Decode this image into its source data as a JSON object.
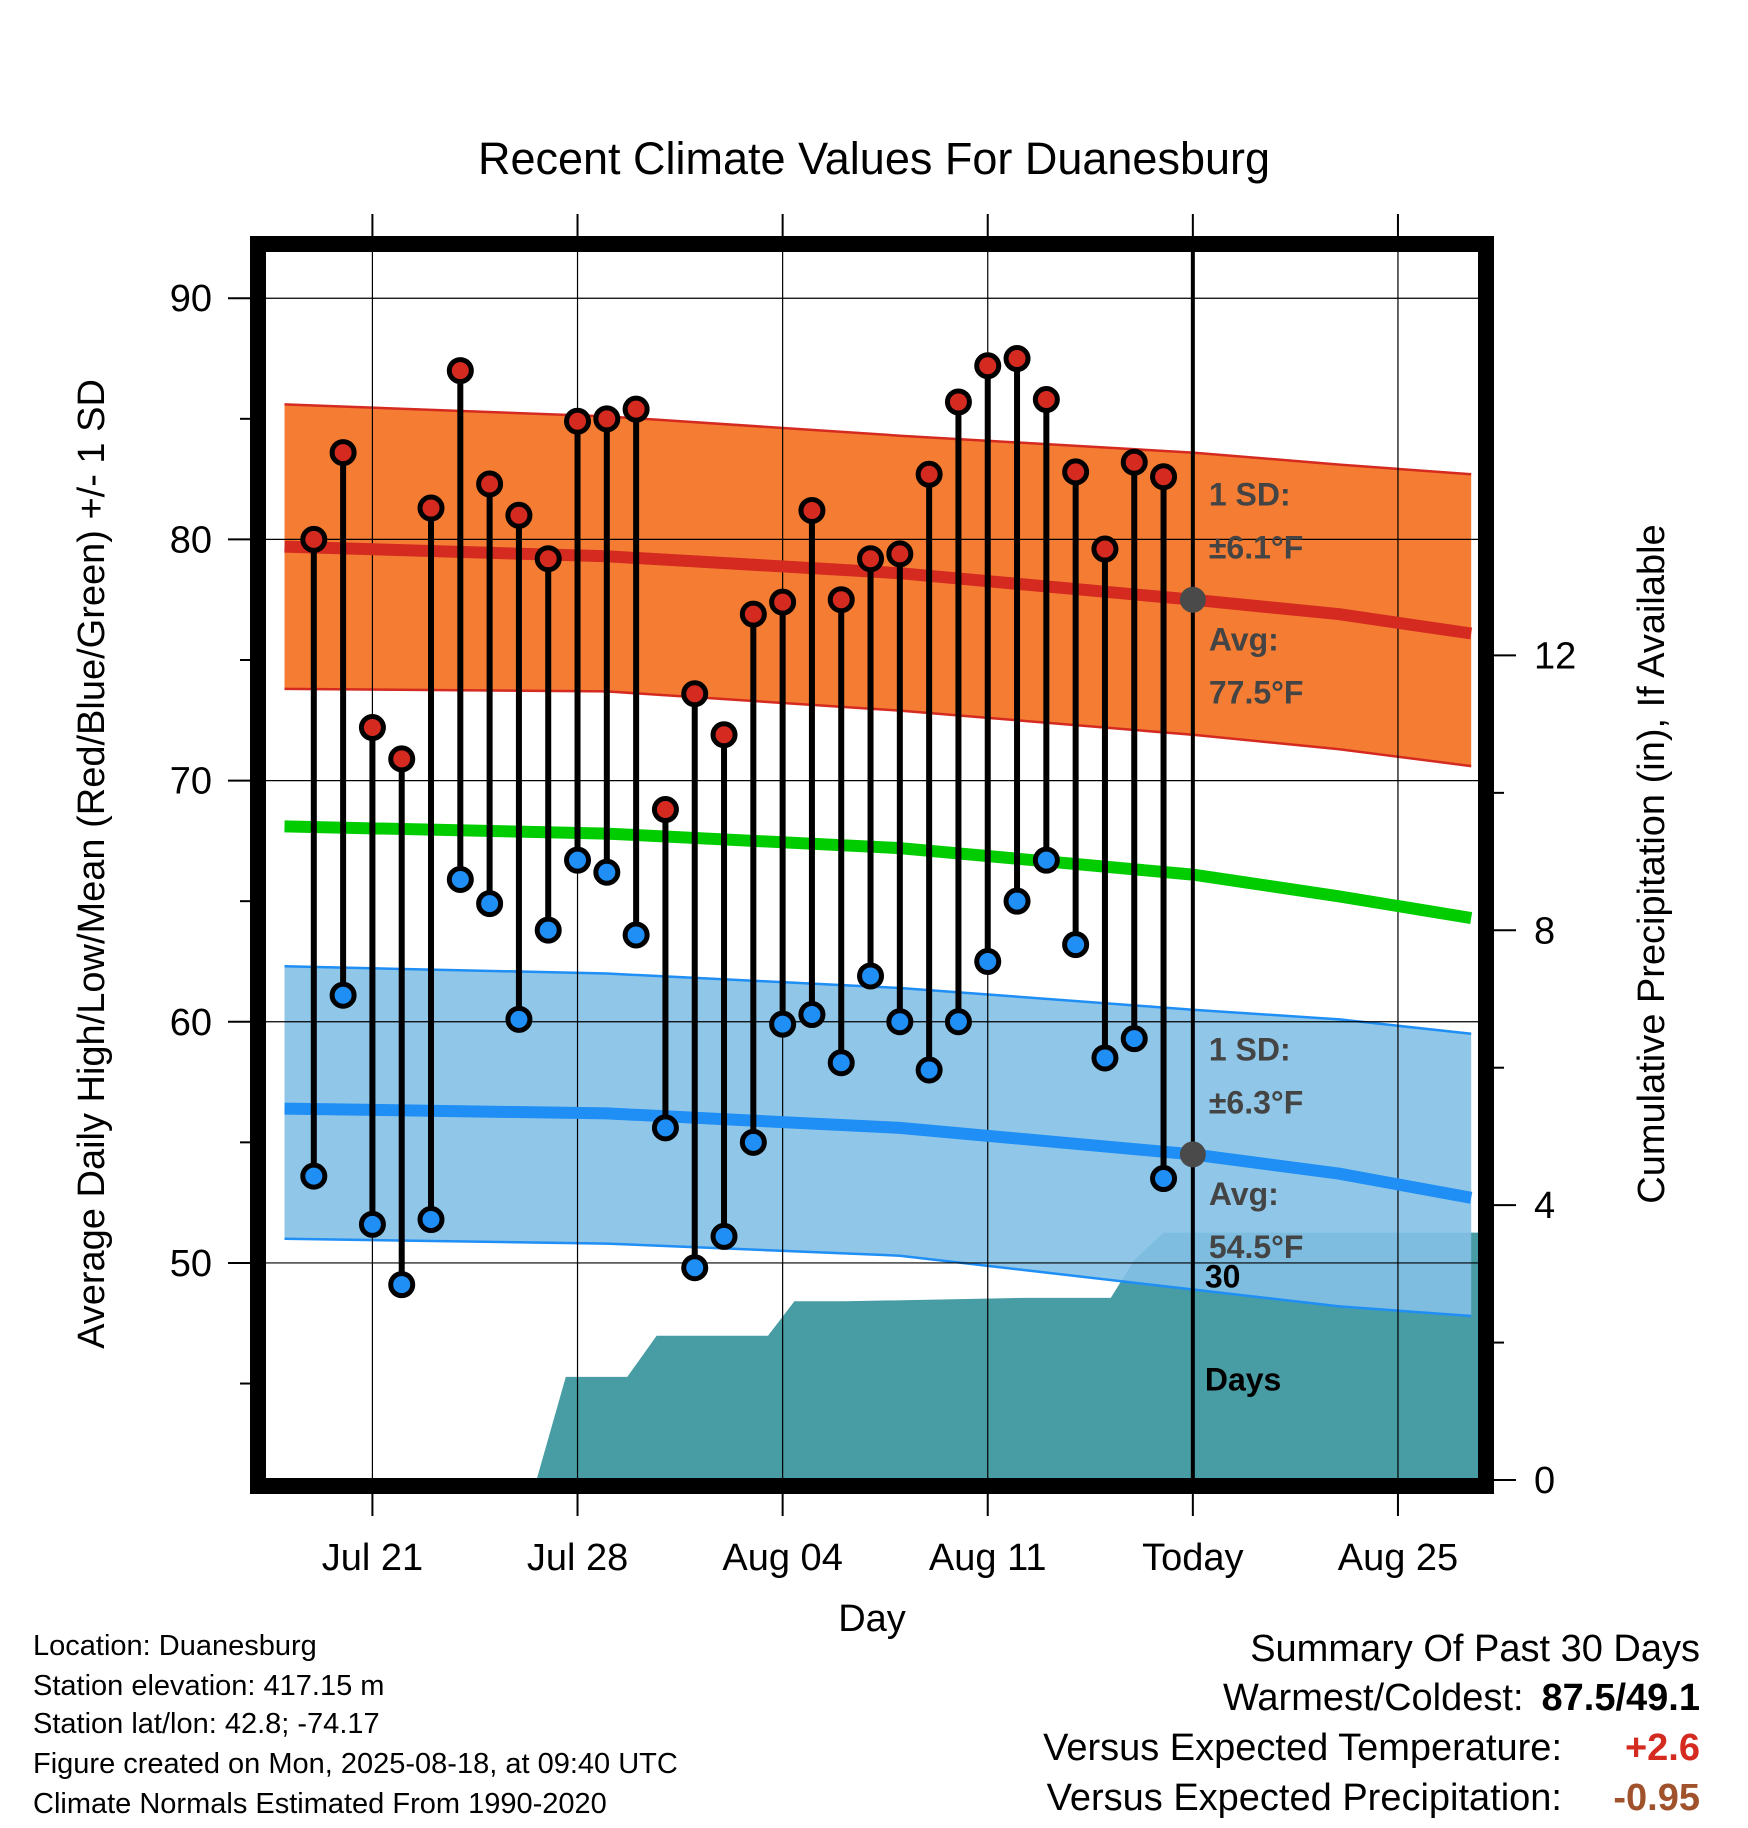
{
  "chart_data": {
    "type": "line",
    "title": "Recent Climate Values For Duanesburg",
    "xlabel": "Day",
    "ylabel_left": "Average Daily High/Low/Mean (Red/Blue/Green) +/- 1 SD",
    "ylabel_right": "Cumulative Precipitation (in), If Available",
    "x_domain_days": [
      -31.7,
      9.8
    ],
    "ylim_left": [
      41,
      92
    ],
    "ylim_right": [
      0,
      17.9
    ],
    "left_ticks": [
      90,
      80,
      70,
      60,
      50
    ],
    "right_ticks": [
      12,
      8,
      4,
      0
    ],
    "x_ticks": [
      {
        "day": -28,
        "label": "Jul 21"
      },
      {
        "day": -21,
        "label": "Jul 28"
      },
      {
        "day": -14,
        "label": "Aug 04"
      },
      {
        "day": -7,
        "label": "Aug 11"
      },
      {
        "day": 0,
        "label": "Today"
      },
      {
        "day": 7,
        "label": "Aug 25"
      }
    ],
    "grid": true,
    "colors": {
      "high_band": "#f47a2f",
      "high_avg": "#d42a20",
      "low_band": "#84c1e6",
      "low_avg": "#1f8ef5",
      "mean": "#00cc00",
      "precip": "#489ca4",
      "high_marker": "#d42a20",
      "low_marker": "#1f8ef5",
      "today_marker": "#4a4a4a",
      "annotation": "#444444"
    },
    "normals": {
      "days": [
        -31,
        -20,
        -10,
        0,
        5,
        9.5
      ],
      "high_avg": [
        79.7,
        79.3,
        78.6,
        77.5,
        76.9,
        76.1
      ],
      "high_plus_sd": [
        85.6,
        85.1,
        84.3,
        83.6,
        83.1,
        82.7
      ],
      "high_minus_sd": [
        73.8,
        73.7,
        72.9,
        71.9,
        71.3,
        70.6
      ],
      "mean": [
        68.1,
        67.8,
        67.2,
        66.1,
        65.2,
        64.3
      ],
      "low_avg": [
        56.4,
        56.2,
        55.6,
        54.5,
        53.7,
        52.7
      ],
      "low_plus_sd": [
        62.3,
        62.0,
        61.4,
        60.5,
        60.1,
        59.5
      ],
      "low_minus_sd": [
        51.0,
        50.8,
        50.3,
        48.9,
        48.2,
        47.8
      ]
    },
    "observations": {
      "days": [
        -30,
        -29,
        -28,
        -27,
        -26,
        -25,
        -24,
        -23,
        -22,
        -21,
        -20,
        -19,
        -18,
        -17,
        -16,
        -15,
        -14,
        -13,
        -12,
        -11,
        -10,
        -9,
        -8,
        -7,
        -6,
        -5,
        -4,
        -3,
        -2,
        -1
      ],
      "highs": [
        80.0,
        83.6,
        72.2,
        70.9,
        81.3,
        87.0,
        82.3,
        81.0,
        79.2,
        84.9,
        85.0,
        85.4,
        68.8,
        73.6,
        71.9,
        76.9,
        77.4,
        81.2,
        77.5,
        79.2,
        79.4,
        82.7,
        85.7,
        87.2,
        87.5,
        85.8,
        82.8,
        79.6,
        83.2,
        82.6
      ],
      "lows": [
        53.6,
        61.1,
        51.6,
        49.1,
        51.8,
        65.9,
        64.9,
        60.1,
        63.8,
        66.7,
        66.2,
        63.6,
        55.6,
        49.8,
        51.1,
        55.0,
        59.9,
        60.3,
        58.3,
        61.9,
        60.0,
        58.0,
        60.0,
        62.5,
        65.0,
        66.7,
        63.2,
        58.5,
        59.3,
        53.5
      ]
    },
    "today_markers": [
      {
        "label": "Avg:",
        "value": "77.5°F",
        "numeric": 77.5
      },
      {
        "label": "Avg:",
        "value": "54.5°F",
        "numeric": 54.5
      }
    ],
    "sd_labels": [
      {
        "label": "1 SD:",
        "value": "±6.1°F"
      },
      {
        "label": "1 SD:",
        "value": "±6.3°F"
      }
    ],
    "precip": {
      "days": [
        -22.4,
        -21.4,
        -19.3,
        -18.3,
        -14.5,
        -13.6,
        -11.9,
        -5.8,
        -2.8,
        -2.0,
        -1.0,
        9.8
      ],
      "values": [
        0,
        1.5,
        1.5,
        2.1,
        2.1,
        2.6,
        2.6,
        2.65,
        2.65,
        3.2,
        3.6,
        3.6
      ]
    },
    "window_label_line1": "30",
    "window_label_line2": "Days"
  },
  "info": {
    "location": "Location: Duanesburg",
    "elevation": "Station elevation: 417.15 m",
    "latlon": "Station lat/lon: 42.8; -74.17",
    "created": "Figure created on Mon, 2025-08-18, at 09:40 UTC",
    "normals": "Climate Normals Estimated From 1990-2020"
  },
  "summary": {
    "title": "Summary Of Past 30 Days",
    "warm_cold_label": "Warmest/Coldest:",
    "warm_cold_value": "87.5/49.1",
    "temp_label": "Versus Expected Temperature:",
    "temp_value": "+2.6",
    "temp_color": "#d42a20",
    "precip_label": "Versus Expected Precipitation:",
    "precip_value": "-0.95",
    "precip_color": "#a0522d"
  }
}
